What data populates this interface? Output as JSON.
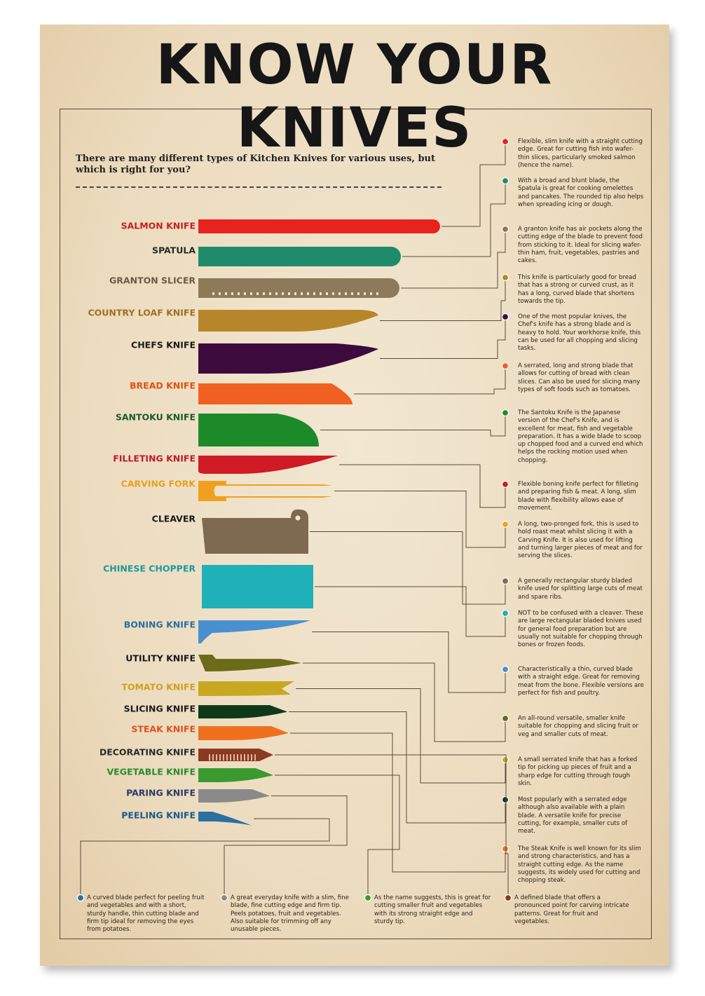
{
  "title": "KNOW YOUR KNIVES",
  "subtitle": "There are many different types of Kitchen Knives for various uses, but which is right for you?",
  "knives": [
    {
      "name": "SALMON KNIFE",
      "color": "#e8231f",
      "label_color": "#c8201c",
      "desc": "Flexible, slim knife with a straight cutting edge. Great for cutting fish into wafer-thin slices, particularly smoked salmon (hence the name)."
    },
    {
      "name": "SPATULA",
      "color": "#1e8c6a",
      "label_color": "#1f2a26",
      "desc": "With a broad and blunt blade, the Spatula is great for cooking omelettes and pancakes. The rounded tip also helps when spreading icing or dough."
    },
    {
      "name": "GRANTON SLICER",
      "color": "#8d7a5a",
      "label_color": "#6b5a45",
      "desc": "A granton knife has air pockets along the cutting edge of the blade to prevent food from sticking to it. Ideal for slicing wafer-thin ham, fruit, vegetables, pastries and cakes."
    },
    {
      "name": "COUNTRY LOAF KNIFE",
      "color": "#b8862a",
      "label_color": "#a07020",
      "desc": "This knife is particularly good for bread that has a strong or curved crust, as it has a long, curved blade that shortens towards the tip."
    },
    {
      "name": "CHEFS KNIFE",
      "color": "#3d0a3d",
      "label_color": "#1a1a1a",
      "desc": "One of the most popular knives, the Chef's knife has a strong blade and is heavy to hold. Your workhorse knife, this can be used for all chopping and slicing tasks."
    },
    {
      "name": "BREAD KNIFE",
      "color": "#f06020",
      "label_color": "#e05010",
      "desc": "A serrated, long and strong blade that allows for cutting of bread with clean slices. Can also be used for slicing many types of soft foods such as tomatoes."
    },
    {
      "name": "SANTOKU KNIFE",
      "color": "#1d8a2a",
      "label_color": "#1a5a2a",
      "desc": "The Santoku Knife is the Japanese version of the Chef's Knife, and is excellent for meat, fish and vegetable preparation. It has a wide blade to scoop up chopped food and a curved end which helps the rocking motion used when chopping."
    },
    {
      "name": "FILLETING KNIFE",
      "color": "#d01a24",
      "label_color": "#c01a28",
      "desc": "Flexible boning knife perfect for filleting and preparing fish & meat. A long, slim blade with flexibility allows ease of movement."
    },
    {
      "name": "CARVING FORK",
      "color": "#f0a020",
      "label_color": "#e8a020",
      "desc": "A long, two-pronged fork, this is used to hold roast meat whilst slicing it with a Carving Knife. It is also used for lifting and turning larger pieces of meat and for serving the slices."
    },
    {
      "name": "CLEAVER",
      "color": "#7d6a50",
      "label_color": "#1a1a1a",
      "desc": "A generally rectangular sturdy bladed knife used for splitting large cuts of meat and spare ribs."
    },
    {
      "name": "CHINESE CHOPPER",
      "color": "#20b0b8",
      "label_color": "#1a9aa0",
      "desc": "NOT to be confused with a cleaver. These are large rectangular bladed knives used for general food preparation but are usually not suitable for chopping through bones or frozen foods."
    },
    {
      "name": "BONING KNIFE",
      "color": "#4a90d0",
      "label_color": "#2a70a0",
      "desc": "Characteristically a thin, curved blade with a straight edge. Great for removing meat from the bone. Flexible versions are perfect for fish and poultry."
    },
    {
      "name": "UTILITY KNIFE",
      "color": "#6b6b1a",
      "label_color": "#1a1a1a",
      "desc": "An all-round versatile, smaller knife suitable for chopping and slicing fruit or veg and smaller cuts of meat."
    },
    {
      "name": "TOMATO KNIFE",
      "color": "#c8a820",
      "label_color": "#d0a020",
      "desc": "A small serrated knife that has a forked tip for picking up pieces of fruit and a sharp edge for cutting through tough skin."
    },
    {
      "name": "SLICING KNIFE",
      "color": "#0f3a1a",
      "label_color": "#1a1a1a",
      "desc": "Most popularly with a serrated edge although also available with a plain blade. A versatile knife for precise cutting, for example, smaller cuts of meat."
    },
    {
      "name": "STEAK KNIFE",
      "color": "#f07020",
      "label_color": "#e05020",
      "desc": "The Steak Knife is well known for its slim and strong characteristics, and has a straight cutting edge. As the name suggests, its widely used for cutting and chopping steak."
    },
    {
      "name": "DECORATING KNIFE",
      "color": "#8a3a20",
      "label_color": "#2a2a2a",
      "desc": "A defined blade that offers a pronounced point for carving intricate patterns. Great for fruit and vegetables."
    },
    {
      "name": "VEGETABLE KNIFE",
      "color": "#3a9a30",
      "label_color": "#2a8a30",
      "desc": "As the name suggests, this is great for cutting smaller fruit and vegetables with its strong straight edge and sturdy tip."
    },
    {
      "name": "PARING KNIFE",
      "color": "#8a8a8a",
      "label_color": "#2a3a6a",
      "desc": "A great everyday knife with a slim, fine blade, fine cutting edge and firm tip. Peels potatoes, fruit and vegetables. Also suitable for trimming off any unusable pieces."
    },
    {
      "name": "PEELING KNIFE",
      "color": "#2a70a0",
      "label_color": "#1a5a8a",
      "desc": "A curved blade perfect for peeling fruit and vegetables and with a short, sturdy handle, thin cutting blade and firm tip ideal for removing the eyes from potatoes."
    }
  ]
}
